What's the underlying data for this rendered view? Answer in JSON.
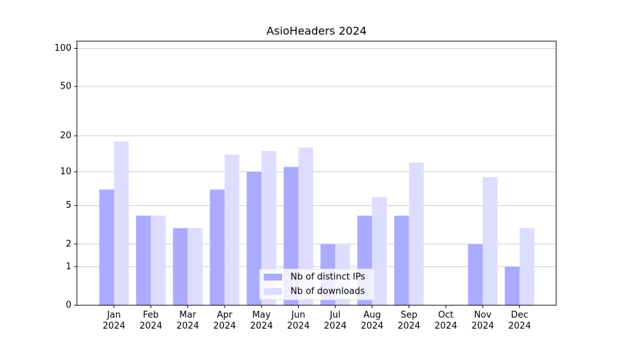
{
  "chart_data": {
    "type": "bar",
    "title": "AsioHeaders 2024",
    "scale": "log1p",
    "categories": [
      "Jan\n2024",
      "Feb\n2024",
      "Mar\n2024",
      "Apr\n2024",
      "May\n2024",
      "Jun\n2024",
      "Jul\n2024",
      "Aug\n2024",
      "Sep\n2024",
      "Oct\n2024",
      "Nov\n2024",
      "Dec\n2024"
    ],
    "series": [
      {
        "name": "Nb of distinct IPs",
        "color": "#aaaaff",
        "values": [
          7,
          4,
          3,
          7,
          10,
          11,
          2,
          4,
          4,
          0,
          2,
          1
        ]
      },
      {
        "name": "Nb of downloads",
        "color": "#ddddff",
        "values": [
          18,
          4,
          3,
          14,
          15,
          16,
          2,
          6,
          12,
          0,
          9,
          3
        ]
      }
    ],
    "ylim": [
      0,
      114
    ],
    "yticks": [
      0,
      1,
      2,
      5,
      10,
      20,
      50,
      100
    ],
    "grid": true,
    "legend": "lower center"
  }
}
